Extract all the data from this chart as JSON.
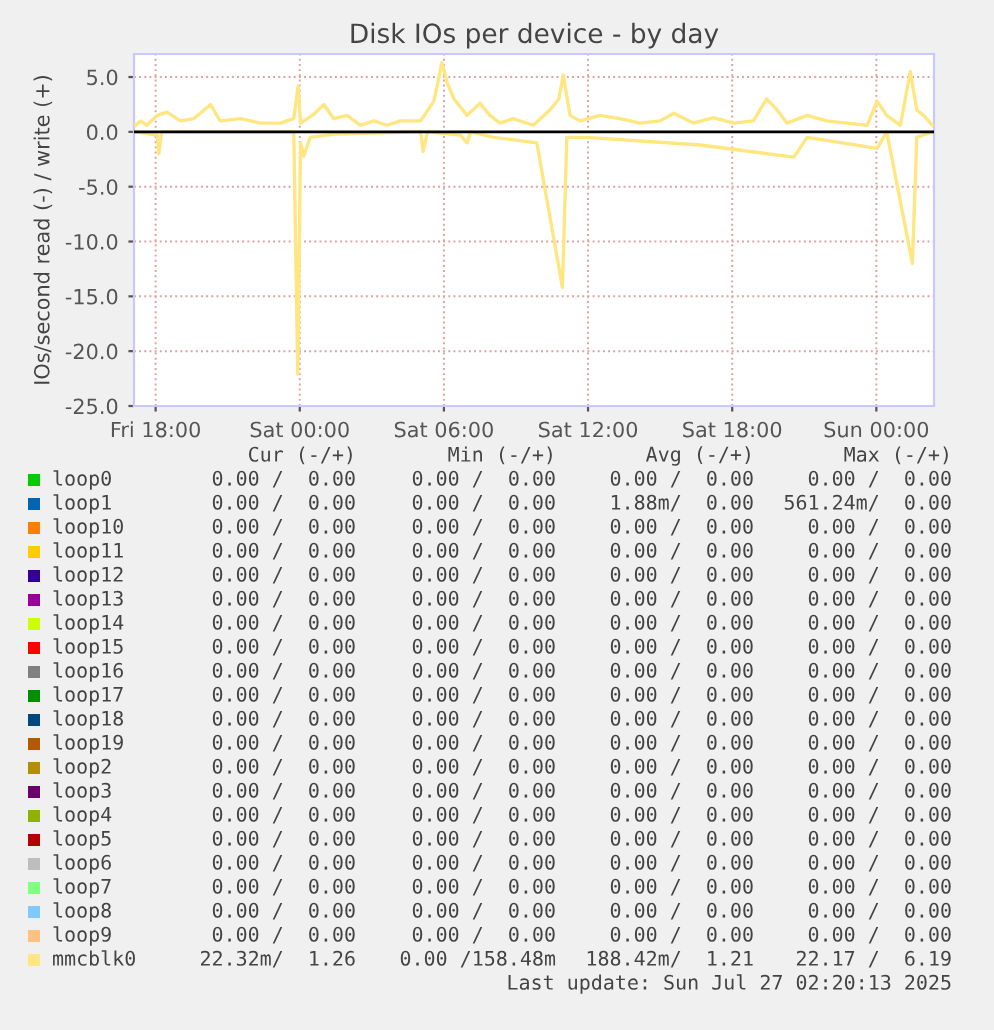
{
  "chart_data": {
    "type": "line",
    "title": "Disk IOs per device - by day",
    "ylabel": "IOs/second read (-) / write (+)",
    "xlim": [
      "2025-07-25T17:06",
      "2025-07-27T02:24"
    ],
    "ylim": [
      -25,
      7.1
    ],
    "xticks": [
      {
        "value": "2025-07-25T18:00",
        "label": "Fri 18:00"
      },
      {
        "value": "2025-07-26T00:00",
        "label": "Sat 00:00"
      },
      {
        "value": "2025-07-26T06:00",
        "label": "Sat 06:00"
      },
      {
        "value": "2025-07-26T12:00",
        "label": "Sat 12:00"
      },
      {
        "value": "2025-07-26T18:00",
        "label": "Sat 18:00"
      },
      {
        "value": "2025-07-27T00:00",
        "label": "Sun 00:00"
      }
    ],
    "yticks": [
      {
        "value": -25,
        "label": "-25.0"
      },
      {
        "value": -20,
        "label": "-20.0"
      },
      {
        "value": -15,
        "label": "-15.0"
      },
      {
        "value": -10,
        "label": "-10.0"
      },
      {
        "value": -5,
        "label": "-5.0"
      },
      {
        "value": 0,
        "label": "0.0"
      },
      {
        "value": 5,
        "label": "5.0"
      }
    ],
    "grid": true,
    "legend": "bottom",
    "line_style": "solid",
    "marker": "none",
    "series": [
      {
        "name": "loop0",
        "color": "#00cc00"
      },
      {
        "name": "loop1",
        "color": "#0066b3"
      },
      {
        "name": "loop10",
        "color": "#ff8000"
      },
      {
        "name": "loop11",
        "color": "#ffcc00"
      },
      {
        "name": "loop12",
        "color": "#330099"
      },
      {
        "name": "loop13",
        "color": "#990099"
      },
      {
        "name": "loop14",
        "color": "#ccff00"
      },
      {
        "name": "loop15",
        "color": "#ff0000"
      },
      {
        "name": "loop16",
        "color": "#808080"
      },
      {
        "name": "loop17",
        "color": "#008f00"
      },
      {
        "name": "loop18",
        "color": "#00487d"
      },
      {
        "name": "loop19",
        "color": "#b35a00"
      },
      {
        "name": "loop2",
        "color": "#b38f00"
      },
      {
        "name": "loop3",
        "color": "#6b006b"
      },
      {
        "name": "loop4",
        "color": "#8fb300"
      },
      {
        "name": "loop5",
        "color": "#b30000"
      },
      {
        "name": "loop6",
        "color": "#bebebe"
      },
      {
        "name": "loop7",
        "color": "#80ff80"
      },
      {
        "name": "loop8",
        "color": "#80c9ff"
      },
      {
        "name": "loop9",
        "color": "#ffc080"
      },
      {
        "name": "mmcblk0",
        "color": "#ffe680",
        "x": [
          "2025-07-25T17:10",
          "2025-07-25T17:22",
          "2025-07-25T17:38",
          "2025-07-25T18:04",
          "2025-07-25T18:28",
          "2025-07-25T19:02",
          "2025-07-25T19:35",
          "2025-07-25T20:17",
          "2025-07-25T20:41",
          "2025-07-25T21:32",
          "2025-07-25T22:22",
          "2025-07-25T23:11",
          "2025-07-25T23:45",
          "2025-07-25T23:56",
          "2025-07-26T00:02",
          "2025-07-26T00:35",
          "2025-07-26T01:00",
          "2025-07-26T01:25",
          "2025-07-26T01:58",
          "2025-07-26T02:32",
          "2025-07-26T03:05",
          "2025-07-26T03:38",
          "2025-07-26T04:11",
          "2025-07-26T05:02",
          "2025-07-26T05:35",
          "2025-07-26T05:55",
          "2025-07-26T06:08",
          "2025-07-26T06:25",
          "2025-07-26T06:58",
          "2025-07-26T07:30",
          "2025-07-26T07:55",
          "2025-07-26T08:20",
          "2025-07-26T08:53",
          "2025-07-26T09:43",
          "2025-07-26T10:25",
          "2025-07-26T10:47",
          "2025-07-26T10:58",
          "2025-07-26T11:15",
          "2025-07-26T11:40",
          "2025-07-26T12:30",
          "2025-07-26T13:20",
          "2025-07-26T14:10",
          "2025-07-26T15:00",
          "2025-07-26T15:34",
          "2025-07-26T16:23",
          "2025-07-26T17:13",
          "2025-07-26T18:04",
          "2025-07-26T18:53",
          "2025-07-26T19:26",
          "2025-07-26T19:52",
          "2025-07-26T20:17",
          "2025-07-26T21:07",
          "2025-07-26T21:56",
          "2025-07-26T22:47",
          "2025-07-26T23:37",
          "2025-07-27T00:02",
          "2025-07-27T00:26",
          "2025-07-27T01:00",
          "2025-07-27T01:25",
          "2025-07-27T01:41",
          "2025-07-27T01:58",
          "2025-07-27T02:20"
        ],
        "values": [
          0.6,
          1.0,
          0.6,
          1.5,
          1.8,
          1.0,
          1.2,
          2.5,
          1.0,
          1.2,
          0.8,
          0.8,
          1.2,
          4.2,
          0.8,
          1.6,
          2.5,
          1.2,
          1.5,
          0.6,
          1.0,
          0.6,
          1.0,
          1.0,
          2.8,
          6.3,
          4.5,
          3.0,
          1.5,
          2.6,
          1.5,
          0.8,
          1.2,
          0.6,
          2.0,
          3.0,
          5.2,
          1.5,
          1.0,
          1.5,
          1.2,
          0.8,
          1.0,
          1.7,
          0.8,
          1.3,
          0.8,
          1.0,
          3.0,
          2.0,
          0.8,
          1.5,
          1.0,
          0.8,
          0.6,
          2.8,
          1.5,
          0.6,
          5.5,
          2.0,
          1.5,
          0.6
        ]
      },
      {
        "color": "#ffe680",
        "x": [
          "2025-07-25T17:10",
          "2025-07-25T18:04",
          "2025-07-25T18:08",
          "2025-07-25T18:15",
          "2025-07-25T23:45",
          "2025-07-25T23:55",
          "2025-07-26T00:02",
          "2025-07-26T00:10",
          "2025-07-26T00:26",
          "2025-07-26T01:25",
          "2025-07-26T05:02",
          "2025-07-26T05:08",
          "2025-07-26T05:19",
          "2025-07-26T06:41",
          "2025-07-26T06:58",
          "2025-07-26T07:07",
          "2025-07-26T08:04",
          "2025-07-26T09:52",
          "2025-07-26T10:56",
          "2025-07-26T11:07",
          "2025-07-26T11:56",
          "2025-07-26T16:40",
          "2025-07-26T20:34",
          "2025-07-26T21:07",
          "2025-07-27T00:02",
          "2025-07-27T00:26",
          "2025-07-27T01:30",
          "2025-07-27T01:41",
          "2025-07-27T02:20"
        ],
        "values": [
          0,
          -0.3,
          -2.0,
          0,
          0,
          -22.1,
          -1.0,
          -2.2,
          -0.5,
          -0.2,
          0,
          -1.8,
          0,
          -0.3,
          -1.0,
          0,
          -0.5,
          -1.0,
          -14.2,
          -0.5,
          -0.5,
          -1.2,
          -2.3,
          -0.5,
          -1.5,
          0,
          -12.0,
          -0.5,
          0
        ]
      }
    ],
    "annotations": [
      "Cur (-/+)",
      "Min (-/+)",
      "Avg (-/+)",
      "Max (-/+)",
      "0.00 /  0.00",
      "0.00 /  0.00",
      "0.00 /  0.00",
      "0.00 /  0.00",
      "0.00 /  0.00",
      "0.00 /  0.00",
      "1.88m/  0.00",
      "561.24m/  0.00",
      "0.00 /  0.00",
      "0.00 /  0.00",
      "0.00 /  0.00",
      "0.00 /  0.00",
      "0.00 /  0.00",
      "0.00 /  0.00",
      "0.00 /  0.00",
      "0.00 /  0.00",
      "0.00 /  0.00",
      "0.00 /  0.00",
      "0.00 /  0.00",
      "0.00 /  0.00",
      "0.00 /  0.00",
      "0.00 /  0.00",
      "0.00 /  0.00",
      "0.00 /  0.00",
      "0.00 /  0.00",
      "0.00 /  0.00",
      "0.00 /  0.00",
      "0.00 /  0.00",
      "0.00 /  0.00",
      "0.00 /  0.00",
      "0.00 /  0.00",
      "0.00 /  0.00",
      "0.00 /  0.00",
      "0.00 /  0.00",
      "0.00 /  0.00",
      "0.00 /  0.00",
      "0.00 /  0.00",
      "0.00 /  0.00",
      "0.00 /  0.00",
      "0.00 /  0.00",
      "0.00 /  0.00",
      "0.00 /  0.00",
      "0.00 /  0.00",
      "0.00 /  0.00",
      "0.00 /  0.00",
      "0.00 /  0.00",
      "0.00 /  0.00",
      "0.00 /  0.00",
      "0.00 /  0.00",
      "0.00 /  0.00",
      "0.00 /  0.00",
      "0.00 /  0.00",
      "0.00 /  0.00",
      "0.00 /  0.00",
      "0.00 /  0.00",
      "0.00 /  0.00",
      "0.00 /  0.00",
      "0.00 /  0.00",
      "0.00 /  0.00",
      "0.00 /  0.00",
      "0.00 /  0.00",
      "0.00 /  0.00",
      "0.00 /  0.00",
      "0.00 /  0.00",
      "0.00 /  0.00",
      "0.00 /  0.00",
      "0.00 /  0.00",
      "0.00 /  0.00",
      "0.00 /  0.00",
      "0.00 /  0.00",
      "0.00 /  0.00",
      "0.00 /  0.00",
      "0.00 /  0.00",
      "0.00 /  0.00",
      "0.00 /  0.00",
      "0.00 /  0.00",
      "0.00 /  0.00",
      "0.00 /  0.00",
      "0.00 /  0.00",
      "0.00 /  0.00",
      "22.32m/  1.26",
      "0.00 /158.48m",
      "188.42m/  1.21",
      "22.17 /  6.19",
      "Last update: Sun Jul 27 02:20:13 2025"
    ]
  }
}
